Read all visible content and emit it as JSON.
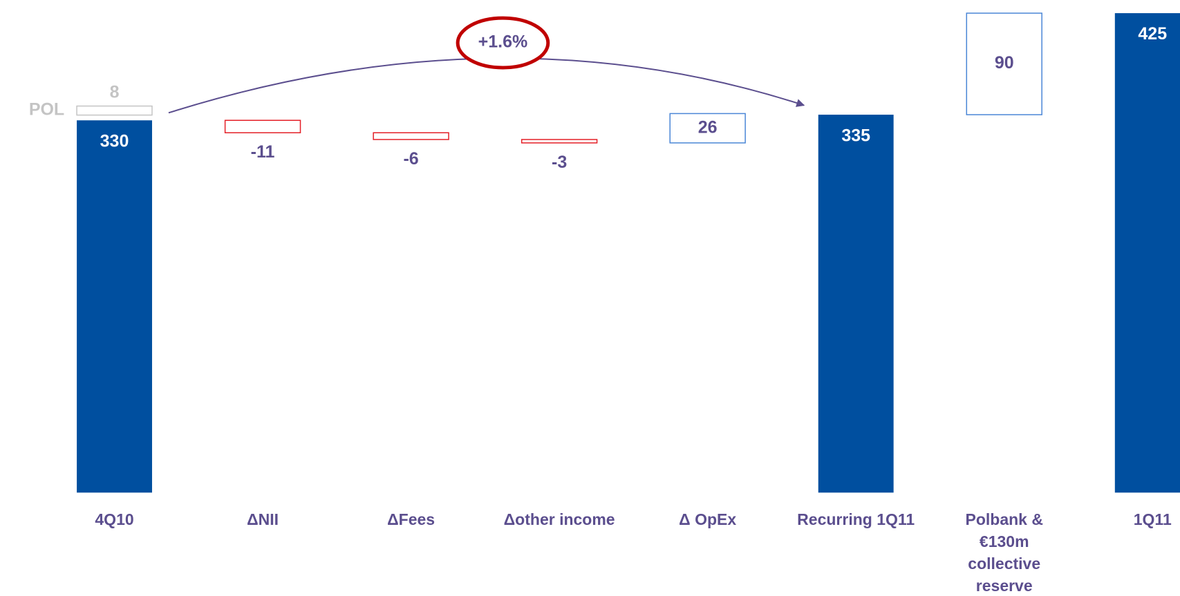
{
  "chart_data": {
    "type": "waterfall",
    "categories": [
      "4Q10",
      "ΔNII",
      "ΔFees",
      "Δother income",
      "Δ OpEx",
      "Recurring 1Q11",
      "Polbank & €130m collective reserve",
      "1Q11"
    ],
    "values": [
      330,
      -11,
      -6,
      -3,
      26,
      335,
      90,
      425
    ],
    "measure": [
      "total",
      "relative",
      "relative",
      "relative",
      "relative",
      "total",
      "relative",
      "total"
    ],
    "colors": {
      "total": "#004f9f",
      "decrease": "#e41e26",
      "increase": "#4a86d6"
    },
    "extra": {
      "name": "POL",
      "value": 8,
      "color": "#c4c4c4"
    },
    "annotation": "+1.6%"
  }
}
